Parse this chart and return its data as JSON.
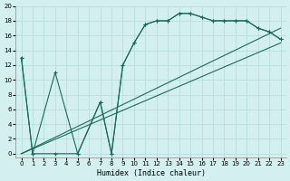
{
  "xlabel": "Humidex (Indice chaleur)",
  "background_color": "#d4efef",
  "line_color": "#1a6b5a",
  "grid_color": "#b8dede",
  "xlim": [
    -0.5,
    23.5
  ],
  "ylim": [
    -0.5,
    20
  ],
  "xticks": [
    0,
    1,
    2,
    3,
    4,
    5,
    6,
    7,
    8,
    9,
    10,
    11,
    12,
    13,
    14,
    15,
    16,
    17,
    18,
    19,
    20,
    21,
    22,
    23
  ],
  "yticks": [
    0,
    2,
    4,
    6,
    8,
    10,
    12,
    14,
    16,
    18,
    20
  ],
  "curve1_x": [
    0,
    1,
    3,
    5,
    7,
    8,
    9,
    10,
    11,
    12,
    13,
    14,
    15,
    16,
    17,
    18,
    19,
    20,
    21,
    22,
    23
  ],
  "curve1_y": [
    13,
    0,
    11,
    0,
    7,
    0,
    12,
    15,
    17.5,
    18,
    18,
    19,
    19,
    18.5,
    18,
    18,
    18,
    18,
    17,
    16.5,
    15.5
  ],
  "curve2_x": [
    0,
    1,
    3,
    5,
    7,
    8,
    9,
    10,
    11,
    12,
    13,
    14,
    15,
    16,
    17,
    18,
    19,
    20,
    21,
    22,
    23
  ],
  "curve2_y": [
    13,
    0,
    0,
    0,
    7,
    0,
    12,
    15,
    17.5,
    18,
    18,
    19,
    19,
    18.5,
    18,
    18,
    18,
    18,
    17,
    16.5,
    15.5
  ],
  "line1_x": [
    0,
    23
  ],
  "line1_y": [
    0,
    15
  ],
  "line2_x": [
    0,
    23
  ],
  "line2_y": [
    0,
    17
  ]
}
